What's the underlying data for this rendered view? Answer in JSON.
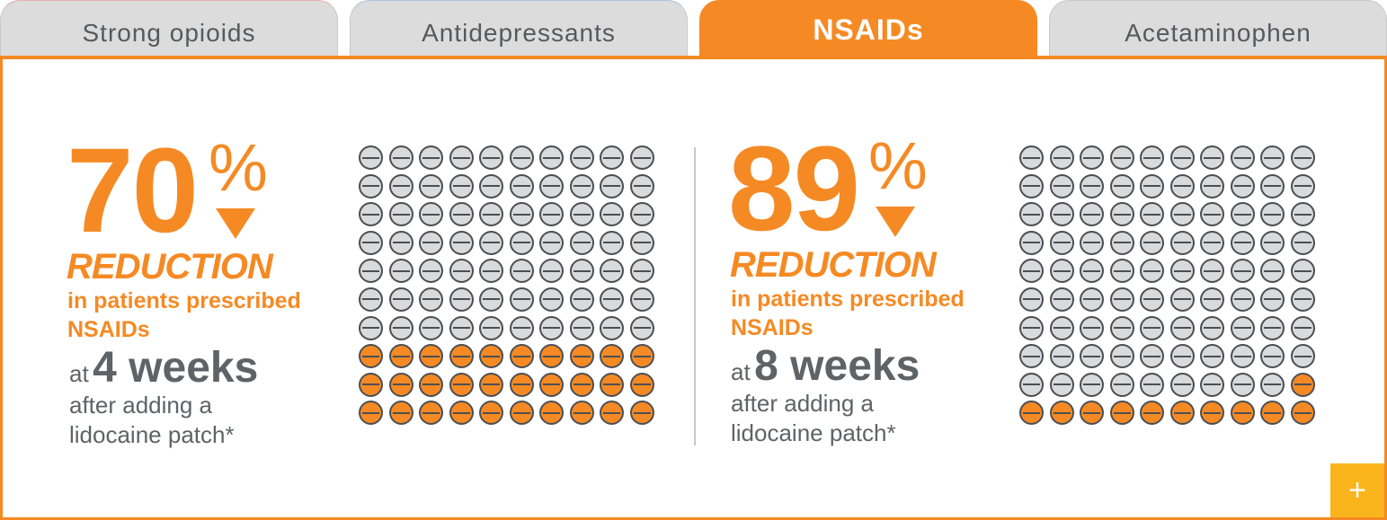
{
  "tabs": [
    {
      "label": "Strong opioids",
      "active": false
    },
    {
      "label": "Antidepressants",
      "active": false
    },
    {
      "label": "NSAIDs",
      "active": true
    },
    {
      "label": "Acetaminophen",
      "active": false
    }
  ],
  "colors": {
    "accent": "#f58a24",
    "text_gray": "#5e6367",
    "inactive_tab": "#dcdcdc",
    "plus_button": "#f9b51b"
  },
  "stats": [
    {
      "value": "70",
      "percent": "%",
      "reduction": "REDUCTION",
      "subtitle_line1": "in patients prescribed",
      "subtitle_line2": "NSAIDs",
      "at": "at",
      "weeks": "4 weeks",
      "after_line1": "after adding a",
      "after_line2": "lidocaine patch*",
      "grid_filled": 30,
      "grid_total": 100
    },
    {
      "value": "89",
      "percent": "%",
      "reduction": "REDUCTION",
      "subtitle_line1": "in patients prescribed",
      "subtitle_line2": "NSAIDs",
      "at": "at",
      "weeks": "8 weeks",
      "after_line1": "after adding a",
      "after_line2": "lidocaine patch*",
      "grid_filled": 11,
      "grid_total": 100
    }
  ],
  "plus_icon": "plus-icon",
  "plus_glyph": "+",
  "down_arrow_icon": "down-triangle-icon"
}
